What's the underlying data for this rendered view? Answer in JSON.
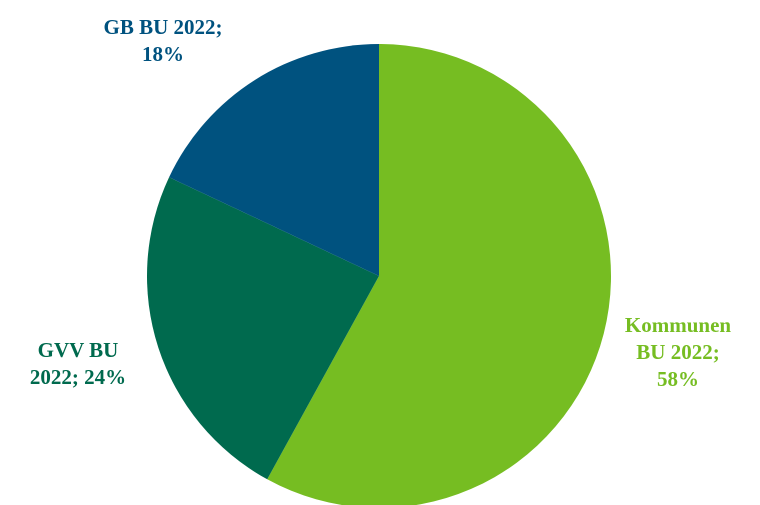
{
  "chart_data": {
    "type": "pie",
    "title": "",
    "slices": [
      {
        "name": "Kommunen BU 2022",
        "value": 58,
        "label_lines": [
          "Kommunen",
          "BU 2022;",
          "58%"
        ],
        "color": "#76bd22"
      },
      {
        "name": "GVV BU 2022",
        "value": 24,
        "label_lines": [
          "GVV BU",
          "2022; 24%"
        ],
        "color": "#006a4e"
      },
      {
        "name": "GB BU 2022",
        "value": 18,
        "label_lines": [
          "GB BU 2022;",
          "18%"
        ],
        "color": "#00527f"
      }
    ],
    "start_angle_deg": 0,
    "direction": "clockwise",
    "legend": "none",
    "label_colors_match_slices": true
  }
}
